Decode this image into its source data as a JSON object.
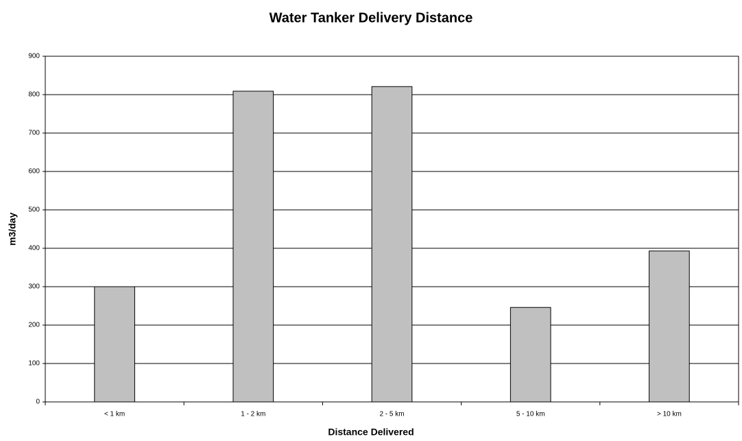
{
  "chart_data": {
    "type": "bar",
    "title": "Water Tanker Delivery Distance",
    "x_label": "Distance Delivered",
    "y_label": "m3/day",
    "categories": [
      "< 1 km",
      "1 - 2 km",
      "2 - 5 km",
      "5 - 10 km",
      "> 10 km"
    ],
    "values": [
      300,
      809,
      821,
      246,
      393
    ],
    "color": "#c0c0c0",
    "ylim": [
      0,
      900
    ],
    "yticks": [
      0,
      100,
      200,
      300,
      400,
      500,
      600,
      700,
      800,
      900
    ],
    "grid": true
  }
}
